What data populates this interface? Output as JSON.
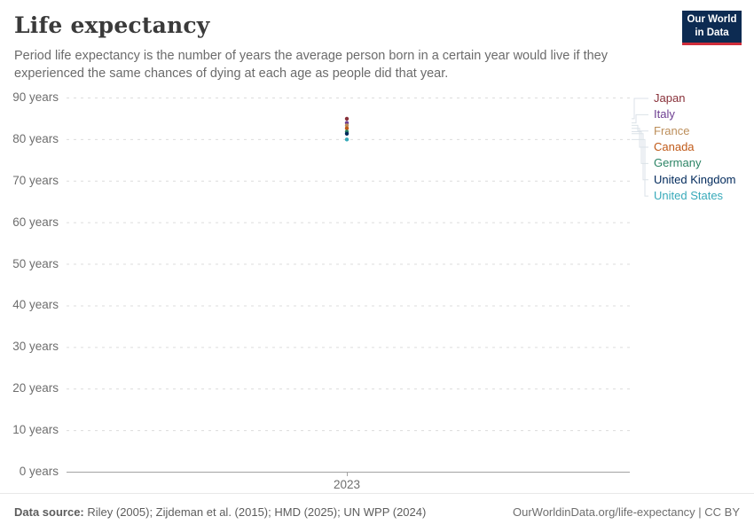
{
  "header": {
    "title": "Life expectancy",
    "subtitle": "Period life expectancy is the number of years the average person born in a certain year would live if they experienced the same chances of dying at each age as people did that year.",
    "logo": {
      "line1": "Our World",
      "line2": "in Data",
      "bg_color": "#0d2b52",
      "accent_color": "#cf2d3a"
    }
  },
  "chart_data": {
    "type": "scatter",
    "title": "Life expectancy",
    "xlabel": "",
    "ylabel": "",
    "ylim": [
      0,
      90
    ],
    "grid": "horizontal-dashed",
    "legend_position": "right",
    "x_tick_label": "2023",
    "x": [
      2023
    ],
    "yticks": [
      {
        "value": 90,
        "label": "90 years"
      },
      {
        "value": 80,
        "label": "80 years"
      },
      {
        "value": 70,
        "label": "70 years"
      },
      {
        "value": 60,
        "label": "60 years"
      },
      {
        "value": 50,
        "label": "50 years"
      },
      {
        "value": 40,
        "label": "40 years"
      },
      {
        "value": 30,
        "label": "30 years"
      },
      {
        "value": 20,
        "label": "20 years"
      },
      {
        "value": 10,
        "label": "10 years"
      },
      {
        "value": 0,
        "label": "0 years"
      }
    ],
    "series": [
      {
        "name": "Japan",
        "color": "#883039",
        "year": 2023,
        "value": 84.9
      },
      {
        "name": "Italy",
        "color": "#6D3E91",
        "year": 2023,
        "value": 83.9
      },
      {
        "name": "France",
        "color": "#BC8E5A",
        "year": 2023,
        "value": 83.3
      },
      {
        "name": "Canada",
        "color": "#C05917",
        "year": 2023,
        "value": 82.6
      },
      {
        "name": "Germany",
        "color": "#2C8465",
        "year": 2023,
        "value": 81.8
      },
      {
        "name": "United Kingdom",
        "color": "#00295B",
        "year": 2023,
        "value": 81.3
      },
      {
        "name": "United States",
        "color": "#38AABA",
        "year": 2023,
        "value": 79.9
      }
    ],
    "colors": {
      "gridline": "#dcdcdc",
      "axis": "#a3a3a3",
      "connector": "#dbe2e8"
    }
  },
  "footer": {
    "source_label": "Data source:",
    "source_text": " Riley (2005); Zijdeman et al. (2015); HMD (2025); UN WPP (2024)",
    "link": "OurWorldinData.org/life-expectancy | CC BY"
  }
}
